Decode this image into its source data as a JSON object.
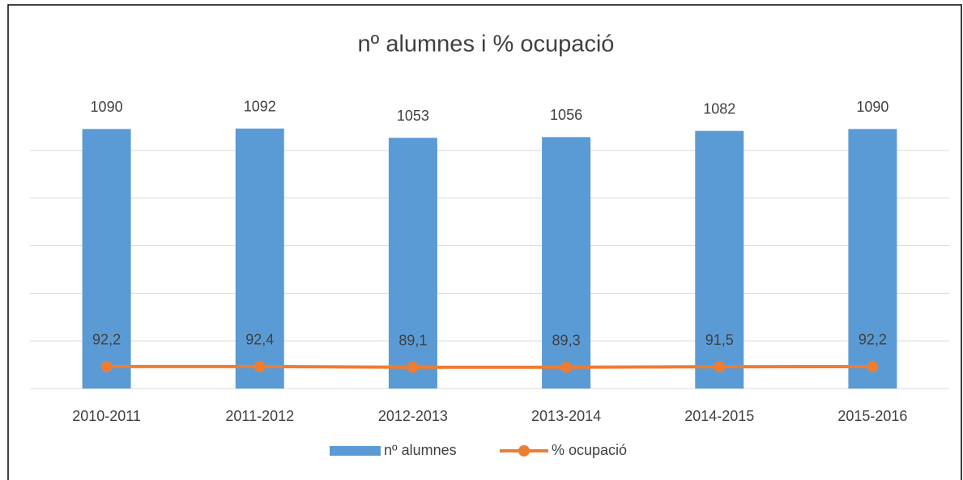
{
  "chart_data": {
    "type": "bar-line",
    "title": "nº alumnes i % ocupació",
    "categories": [
      "2010-2011",
      "2011-2012",
      "2012-2013",
      "2013-2014",
      "2014-2015",
      "2015-2016"
    ],
    "series": [
      {
        "name": "nº alumnes",
        "type": "bar",
        "color": "#5b9bd5",
        "values": [
          1090,
          1092,
          1053,
          1056,
          1082,
          1090
        ]
      },
      {
        "name": "% ocupació",
        "type": "line",
        "color": "#ed7d31",
        "values": [
          92.2,
          92.4,
          89.1,
          89.3,
          91.5,
          92.2
        ],
        "value_labels": [
          "92,2",
          "92,4",
          "89,1",
          "89,3",
          "91,5",
          "92,2"
        ]
      }
    ],
    "ylim": [
      0,
      1200
    ],
    "yticks": [
      0,
      200,
      400,
      600,
      800,
      1000
    ],
    "grid": true,
    "legend": "bottom"
  }
}
